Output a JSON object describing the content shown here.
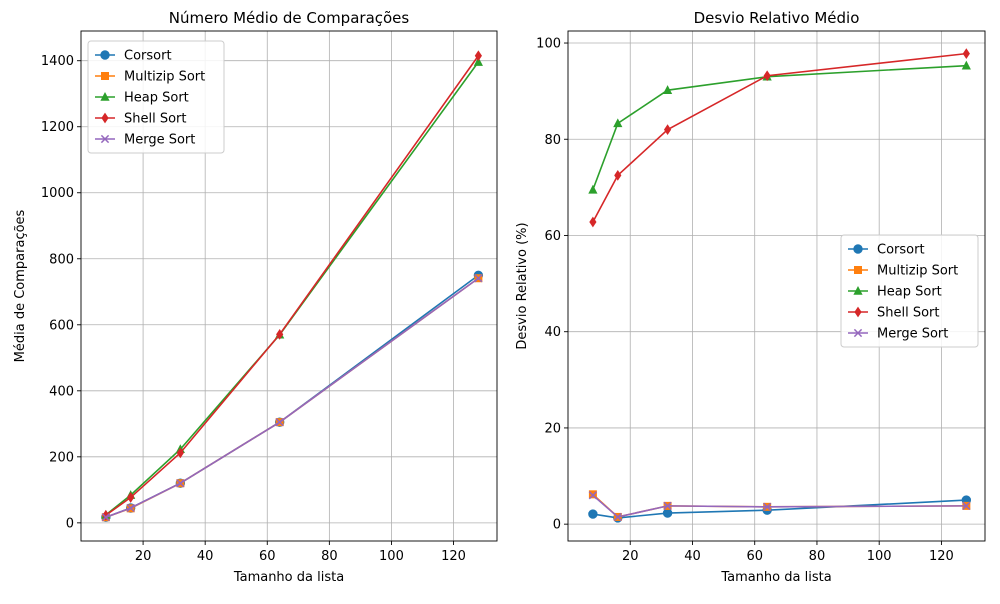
{
  "chart_data": [
    {
      "type": "line",
      "title": "Número Médio de Comparações",
      "xlabel": "Tamanho da lista",
      "ylabel": "Média de Comparações",
      "xlim": [
        0,
        134
      ],
      "ylim": [
        -55,
        1490
      ],
      "xticks": [
        "20",
        "40",
        "60",
        "80",
        "100",
        "120"
      ],
      "yticks": [
        "0",
        "200",
        "400",
        "600",
        "800",
        "1000",
        "1200",
        "1400"
      ],
      "grid": true,
      "legend_position": "top-left",
      "x": [
        8,
        16,
        32,
        64,
        128
      ],
      "series": [
        {
          "name": "Corsort",
          "color": "#1f77b4",
          "marker": "circle",
          "values": [
            17,
            45,
            120,
            305,
            750
          ]
        },
        {
          "name": "Multizip Sort",
          "color": "#ff7f0e",
          "marker": "square",
          "values": [
            17,
            44,
            120,
            305,
            741
          ]
        },
        {
          "name": "Heap Sort",
          "color": "#2ca02c",
          "marker": "triangle",
          "values": [
            24,
            84,
            223,
            570,
            1396
          ]
        },
        {
          "name": "Shell Sort",
          "color": "#d62728",
          "marker": "diamond",
          "values": [
            23,
            77,
            212,
            571,
            1415
          ]
        },
        {
          "name": "Merge Sort",
          "color": "#9467bd",
          "marker": "x",
          "values": [
            17,
            45,
            120,
            305,
            741
          ]
        }
      ]
    },
    {
      "type": "line",
      "title": "Desvio Relativo Médio",
      "xlabel": "Tamanho da lista",
      "ylabel": "Desvio Relativo (%)",
      "xlim": [
        0,
        134
      ],
      "ylim": [
        -3.5,
        102.5
      ],
      "xticks": [
        "20",
        "40",
        "60",
        "80",
        "100",
        "120"
      ],
      "yticks": [
        "0",
        "20",
        "40",
        "60",
        "80",
        "100"
      ],
      "grid": true,
      "legend_position": "center-right",
      "x": [
        8,
        16,
        32,
        64,
        128
      ],
      "series": [
        {
          "name": "Corsort",
          "color": "#1f77b4",
          "marker": "circle",
          "values": [
            2.1,
            1.3,
            2.3,
            2.9,
            5.0
          ]
        },
        {
          "name": "Multizip Sort",
          "color": "#ff7f0e",
          "marker": "square",
          "values": [
            6.2,
            1.5,
            3.8,
            3.6,
            3.8
          ]
        },
        {
          "name": "Heap Sort",
          "color": "#2ca02c",
          "marker": "triangle",
          "values": [
            69.5,
            83.3,
            90.2,
            93.0,
            95.3
          ]
        },
        {
          "name": "Shell Sort",
          "color": "#d62728",
          "marker": "diamond",
          "values": [
            62.8,
            72.5,
            82.0,
            93.2,
            97.8
          ]
        },
        {
          "name": "Merge Sort",
          "color": "#9467bd",
          "marker": "x",
          "values": [
            6.0,
            1.5,
            3.8,
            3.6,
            3.8
          ]
        }
      ]
    }
  ]
}
